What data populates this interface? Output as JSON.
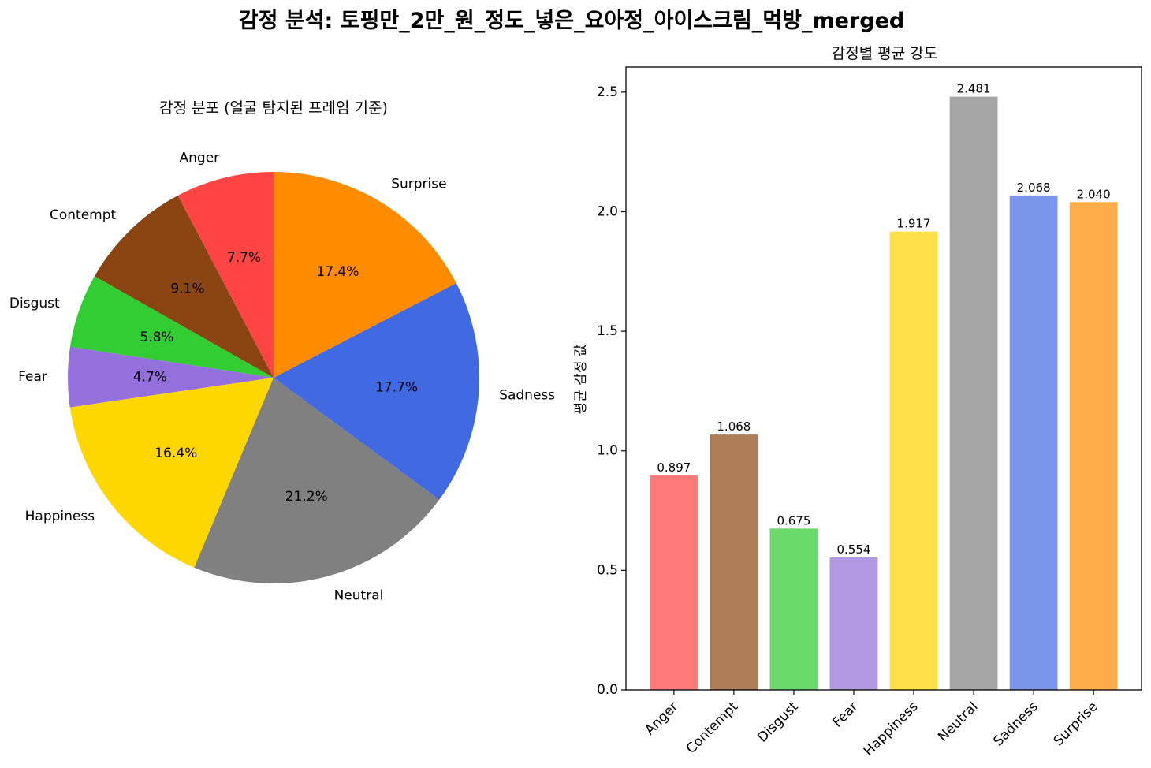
{
  "suptitle": "감정 분석: 토핑만_2만_원_정도_넣은_요아정_아이스크림_먹방_merged",
  "chart_data": [
    {
      "type": "pie",
      "title": "감정 분포 (얼굴 탐지된 프레임 기준)",
      "categories": [
        "Anger",
        "Contempt",
        "Disgust",
        "Fear",
        "Happiness",
        "Neutral",
        "Sadness",
        "Surprise"
      ],
      "values": [
        7.7,
        9.1,
        5.8,
        4.7,
        16.4,
        21.2,
        17.7,
        17.4
      ],
      "value_labels": [
        "7.7%",
        "9.1%",
        "5.8%",
        "4.7%",
        "16.4%",
        "21.2%",
        "17.7%",
        "17.4%"
      ],
      "colors": [
        "#ff4444",
        "#8b4513",
        "#32cd32",
        "#9370db",
        "#ffd700",
        "#808080",
        "#4169e1",
        "#ff8c00"
      ],
      "start_angle_deg": 90,
      "direction": "counterclockwise"
    },
    {
      "type": "bar",
      "title": "감정별 평균 강도",
      "categories": [
        "Anger",
        "Contempt",
        "Disgust",
        "Fear",
        "Happiness",
        "Neutral",
        "Sadness",
        "Surprise"
      ],
      "values": [
        0.897,
        1.068,
        0.675,
        0.554,
        1.917,
        2.481,
        2.068,
        2.04
      ],
      "value_labels": [
        "0.897",
        "1.068",
        "0.675",
        "0.554",
        "1.917",
        "2.481",
        "2.068",
        "2.040"
      ],
      "colors": [
        "#ff7b7b",
        "#ad7d57",
        "#6adb6a",
        "#b297e2",
        "#ffe04a",
        "#a6a6a6",
        "#7a95ea",
        "#ffad4a"
      ],
      "xlabel": "",
      "ylabel": "평균 감정 값",
      "ylim": [
        0,
        2.605
      ],
      "yticks": [
        0.0,
        0.5,
        1.0,
        1.5,
        2.0,
        2.5
      ],
      "ytick_labels": [
        "0.0",
        "0.5",
        "1.0",
        "1.5",
        "2.0",
        "2.5"
      ],
      "grid": false
    }
  ]
}
